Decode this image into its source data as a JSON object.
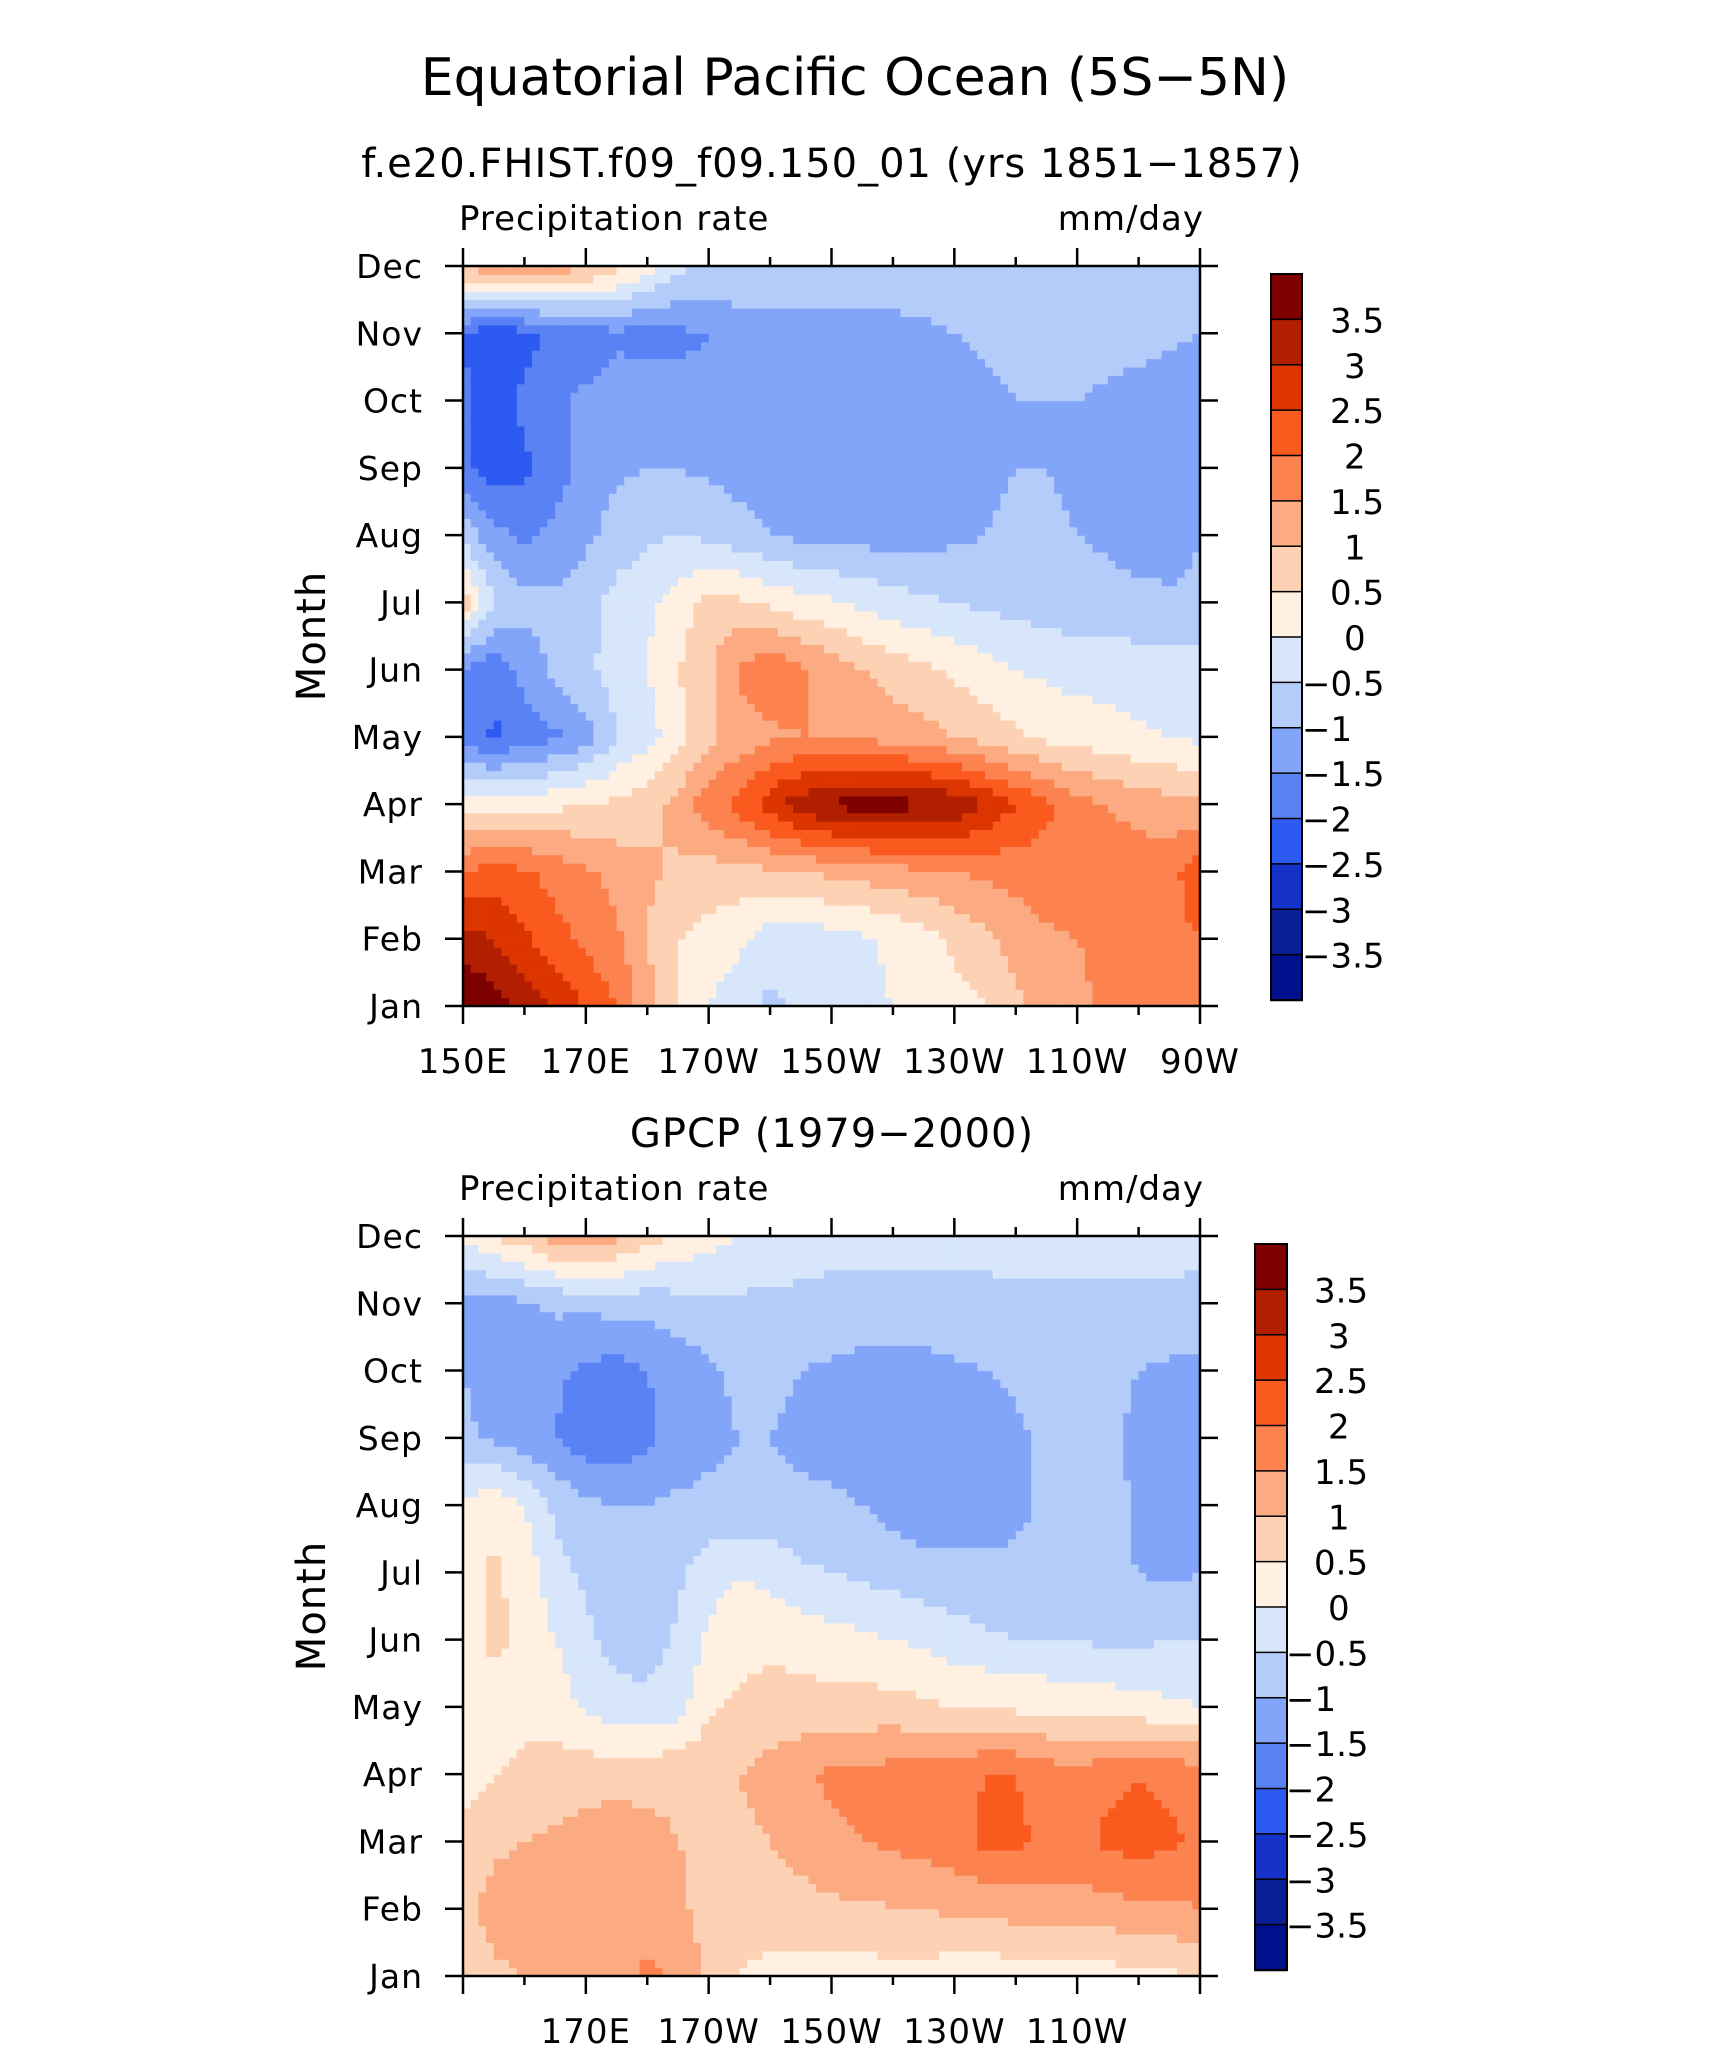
{
  "figure": {
    "title": "Equatorial Pacific Ocean (5S−5N)"
  },
  "colorbar": {
    "levels": [
      "3.5",
      "3",
      "2.5",
      "2",
      "1.5",
      "1",
      "0.5",
      "0",
      "−0.5",
      "−1",
      "−1.5",
      "−2",
      "−2.5",
      "−3",
      "−3.5"
    ],
    "colors": [
      "#7f0000",
      "#b21e00",
      "#dc3500",
      "#fa5a1e",
      "#fc8250",
      "#fcaa82",
      "#fdd2b4",
      "#fff0e1",
      "#d7e6fa",
      "#b4ccfa",
      "#82a5fa",
      "#5a82f5",
      "#2d5af0",
      "#1432c8",
      "#0a1e96",
      "#00108c"
    ]
  },
  "chart_data": [
    {
      "type": "heatmap",
      "title": "f.e20.FHIST.f09_f09.150_01 (yrs 1851−1857)",
      "left_string": "Precipitation rate",
      "right_string": "mm/day",
      "ylabel": "Month",
      "xlabel": "",
      "x_tick_labels": [
        "150E",
        "170E",
        "170W",
        "150W",
        "130W",
        "110W",
        "90W"
      ],
      "y_tick_labels": [
        "Jan",
        "Feb",
        "Mar",
        "Apr",
        "May",
        "Jun",
        "Jul",
        "Aug",
        "Sep",
        "Oct",
        "Nov",
        "Dec"
      ],
      "xlim": [
        150,
        270
      ],
      "ylim": [
        1,
        12
      ],
      "x": [
        150,
        155,
        160,
        165,
        170,
        175,
        180,
        185,
        190,
        195,
        200,
        205,
        210,
        215,
        220,
        225,
        230,
        235,
        240,
        245,
        250,
        255,
        260,
        265,
        270
      ],
      "y": [
        1,
        2,
        3,
        4,
        5,
        6,
        7,
        8,
        9,
        10,
        11,
        12
      ],
      "z": [
        [
          4.0,
          3.8,
          3.4,
          3.0,
          2.4,
          2.0,
          1.2,
          0.4,
          0.0,
          -0.3,
          -0.6,
          -0.4,
          -0.2,
          -0.1,
          0.0,
          0.1,
          0.3,
          0.5,
          0.9,
          1.2,
          1.4,
          1.6,
          1.7,
          1.8,
          1.9
        ],
        [
          3.2,
          3.0,
          2.6,
          2.2,
          1.9,
          1.6,
          1.0,
          0.5,
          0.3,
          0.1,
          -0.3,
          -0.4,
          -0.2,
          -0.1,
          0.1,
          0.3,
          0.6,
          0.9,
          1.2,
          1.4,
          1.5,
          1.6,
          1.7,
          1.8,
          2.0
        ],
        [
          2.0,
          2.2,
          2.1,
          1.8,
          1.6,
          1.3,
          1.1,
          0.9,
          0.8,
          0.8,
          0.9,
          1.0,
          1.1,
          1.2,
          1.3,
          1.4,
          1.5,
          1.6,
          1.7,
          1.8,
          1.8,
          1.8,
          1.8,
          1.8,
          2.4
        ],
        [
          0.2,
          0.3,
          0.3,
          0.4,
          0.5,
          0.6,
          0.8,
          1.2,
          1.8,
          2.2,
          2.8,
          3.3,
          3.6,
          3.7,
          3.7,
          3.6,
          3.4,
          3.0,
          2.5,
          2.1,
          1.7,
          1.5,
          1.3,
          1.2,
          1.1
        ],
        [
          -1.6,
          -2.1,
          -1.8,
          -1.6,
          -1.2,
          -0.5,
          -0.2,
          0.3,
          0.9,
          1.2,
          1.4,
          1.5,
          1.5,
          1.4,
          1.3,
          1.2,
          1.0,
          0.8,
          0.6,
          0.4,
          0.3,
          0.2,
          0.1,
          0.0,
          -0.1
        ],
        [
          -1.6,
          -1.8,
          -1.3,
          -0.9,
          -0.6,
          -0.3,
          0.0,
          0.5,
          0.9,
          1.6,
          1.9,
          1.6,
          1.3,
          1.0,
          0.8,
          0.6,
          0.4,
          0.2,
          0.0,
          -0.1,
          -0.2,
          -0.2,
          -0.3,
          -0.3,
          -0.3
        ],
        [
          0.9,
          -0.5,
          -0.8,
          -0.9,
          -0.7,
          -0.3,
          -0.1,
          0.2,
          0.7,
          0.6,
          0.4,
          0.2,
          0.1,
          -0.1,
          -0.3,
          -0.4,
          -0.5,
          -0.6,
          -0.7,
          -0.7,
          -0.8,
          -0.8,
          -0.8,
          -0.9,
          -0.9
        ],
        [
          -0.7,
          -1.3,
          -1.6,
          -1.4,
          -1.1,
          -0.8,
          -0.6,
          -0.5,
          -0.6,
          -0.8,
          -1.0,
          -1.1,
          -1.2,
          -1.2,
          -1.2,
          -1.2,
          -1.1,
          -1.0,
          -0.9,
          -0.9,
          -1.0,
          -1.1,
          -1.3,
          -1.3,
          -1.0
        ],
        [
          -1.9,
          -2.3,
          -2.1,
          -1.7,
          -1.3,
          -1.1,
          -1.0,
          -1.0,
          -1.1,
          -1.2,
          -1.3,
          -1.3,
          -1.4,
          -1.4,
          -1.4,
          -1.3,
          -1.2,
          -1.1,
          -1.0,
          -1.0,
          -1.1,
          -1.2,
          -1.4,
          -1.4,
          -1.1
        ],
        [
          -1.9,
          -2.2,
          -1.9,
          -1.6,
          -1.4,
          -1.2,
          -1.2,
          -1.3,
          -1.4,
          -1.3,
          -1.3,
          -1.3,
          -1.4,
          -1.4,
          -1.4,
          -1.3,
          -1.2,
          -1.1,
          -1.0,
          -1.0,
          -1.0,
          -1.1,
          -1.2,
          -1.3,
          -1.4
        ],
        [
          -2.0,
          -2.4,
          -2.2,
          -1.9,
          -1.8,
          -1.6,
          -1.7,
          -1.6,
          -1.5,
          -1.2,
          -1.1,
          -1.1,
          -1.1,
          -1.1,
          -1.1,
          -1.1,
          -1.0,
          -0.9,
          -0.8,
          -0.8,
          -0.8,
          -0.8,
          -0.8,
          -0.9,
          -1.0
        ],
        [
          1.1,
          1.3,
          1.4,
          1.3,
          1.1,
          0.7,
          0.2,
          -0.4,
          -0.6,
          -0.7,
          -0.8,
          -0.8,
          -0.8,
          -0.8,
          -0.8,
          -0.7,
          -0.7,
          -0.7,
          -0.7,
          -0.7,
          -0.7,
          -0.7,
          -0.8,
          -0.8,
          -0.9
        ]
      ]
    },
    {
      "type": "heatmap",
      "title": "GPCP (1979−2000)",
      "left_string": "Precipitation rate",
      "right_string": "mm/day",
      "ylabel": "Month",
      "xlabel": "",
      "x_tick_labels": [
        "170E",
        "170W",
        "150W",
        "130W",
        "110W"
      ],
      "y_tick_labels": [
        "Jan",
        "Feb",
        "Mar",
        "Apr",
        "May",
        "Jun",
        "Jul",
        "Aug",
        "Sep",
        "Oct",
        "Nov",
        "Dec"
      ],
      "xlim": [
        150,
        270
      ],
      "ylim": [
        1,
        12
      ],
      "x": [
        150,
        155,
        160,
        165,
        170,
        175,
        180,
        185,
        190,
        195,
        200,
        205,
        210,
        215,
        220,
        225,
        230,
        235,
        240,
        245,
        250,
        255,
        260,
        265,
        270
      ],
      "y": [
        1,
        2,
        3,
        4,
        5,
        6,
        7,
        8,
        9,
        10,
        11,
        12
      ],
      "z": [
        [
          0.6,
          0.9,
          1.0,
          1.1,
          1.2,
          1.3,
          1.6,
          1.4,
          0.9,
          0.5,
          0.4,
          0.3,
          0.3,
          0.3,
          0.3,
          0.3,
          0.2,
          0.2,
          0.2,
          0.2,
          0.3,
          0.3,
          0.4,
          0.4,
          0.6
        ],
        [
          0.8,
          1.2,
          1.3,
          1.3,
          1.1,
          1.2,
          1.3,
          1.1,
          0.8,
          0.6,
          0.7,
          0.8,
          0.9,
          0.9,
          1.0,
          1.0,
          1.1,
          1.1,
          1.2,
          1.2,
          1.3,
          1.3,
          1.4,
          1.4,
          1.5
        ],
        [
          0.7,
          0.9,
          1.0,
          1.1,
          1.2,
          1.3,
          1.2,
          1.0,
          0.9,
          0.9,
          1.0,
          1.2,
          1.4,
          1.5,
          1.6,
          1.7,
          1.8,
          2.1,
          2.1,
          1.9,
          1.8,
          2.1,
          2.2,
          2.1,
          1.9
        ],
        [
          0.3,
          0.5,
          0.6,
          0.7,
          0.8,
          0.8,
          0.8,
          0.9,
          0.9,
          1.0,
          1.2,
          1.4,
          1.6,
          1.6,
          1.7,
          1.8,
          1.8,
          2.0,
          2.0,
          1.8,
          1.7,
          1.9,
          2.0,
          1.9,
          1.8
        ],
        [
          0.3,
          0.3,
          0.4,
          0.3,
          -0.1,
          -0.3,
          -0.3,
          -0.2,
          0.4,
          0.6,
          0.7,
          0.7,
          0.7,
          0.7,
          0.7,
          0.6,
          0.5,
          0.5,
          0.4,
          0.4,
          0.3,
          0.3,
          0.2,
          0.1,
          0.0
        ],
        [
          0.3,
          0.6,
          0.4,
          0.0,
          -0.4,
          -0.7,
          -0.8,
          -0.4,
          0.1,
          0.3,
          0.4,
          0.3,
          0.2,
          0.1,
          0.0,
          -0.1,
          -0.3,
          -0.4,
          -0.5,
          -0.5,
          -0.5,
          -0.6,
          -0.6,
          -0.5,
          -0.5
        ],
        [
          0.3,
          0.6,
          0.3,
          -0.3,
          -0.6,
          -0.8,
          -0.8,
          -0.6,
          -0.2,
          0.0,
          -0.2,
          -0.4,
          -0.5,
          -0.6,
          -0.7,
          -0.8,
          -0.8,
          -0.9,
          -0.9,
          -0.9,
          -0.9,
          -0.9,
          -1.0,
          -1.1,
          -1.0
        ],
        [
          0.1,
          0.4,
          0.0,
          -0.6,
          -0.9,
          -1.0,
          -1.0,
          -0.9,
          -0.9,
          -0.9,
          -0.8,
          -0.9,
          -0.9,
          -1.0,
          -1.2,
          -1.3,
          -1.3,
          -1.2,
          -1.1,
          -0.9,
          -0.8,
          -0.8,
          -1.1,
          -1.2,
          -1.1
        ],
        [
          -0.9,
          -1.1,
          -1.3,
          -1.5,
          -1.8,
          -1.9,
          -1.6,
          -1.3,
          -1.1,
          -1.0,
          -1.0,
          -1.1,
          -1.2,
          -1.3,
          -1.3,
          -1.3,
          -1.3,
          -1.2,
          -1.1,
          -0.9,
          -0.8,
          -0.9,
          -1.1,
          -1.2,
          -1.1
        ],
        [
          -1.0,
          -1.2,
          -1.3,
          -1.4,
          -1.6,
          -1.7,
          -1.5,
          -1.3,
          -1.1,
          -0.9,
          -0.9,
          -1.0,
          -1.1,
          -1.2,
          -1.2,
          -1.2,
          -1.1,
          -1.0,
          -0.9,
          -0.8,
          -0.8,
          -0.9,
          -1.0,
          -1.1,
          -1.1
        ],
        [
          -1.1,
          -1.2,
          -1.1,
          -0.9,
          -0.9,
          -0.8,
          -0.8,
          -0.7,
          -0.6,
          -0.6,
          -0.6,
          -0.6,
          -0.6,
          -0.6,
          -0.6,
          -0.6,
          -0.6,
          -0.6,
          -0.6,
          -0.6,
          -0.6,
          -0.6,
          -0.6,
          -0.6,
          -0.7
        ],
        [
          0.1,
          0.5,
          0.8,
          1.2,
          1.3,
          1.1,
          0.7,
          0.4,
          0.2,
          0.0,
          -0.2,
          -0.3,
          -0.4,
          -0.4,
          -0.4,
          -0.4,
          -0.4,
          -0.4,
          -0.3,
          -0.3,
          -0.3,
          -0.3,
          -0.3,
          -0.3,
          -0.3
        ]
      ]
    }
  ]
}
